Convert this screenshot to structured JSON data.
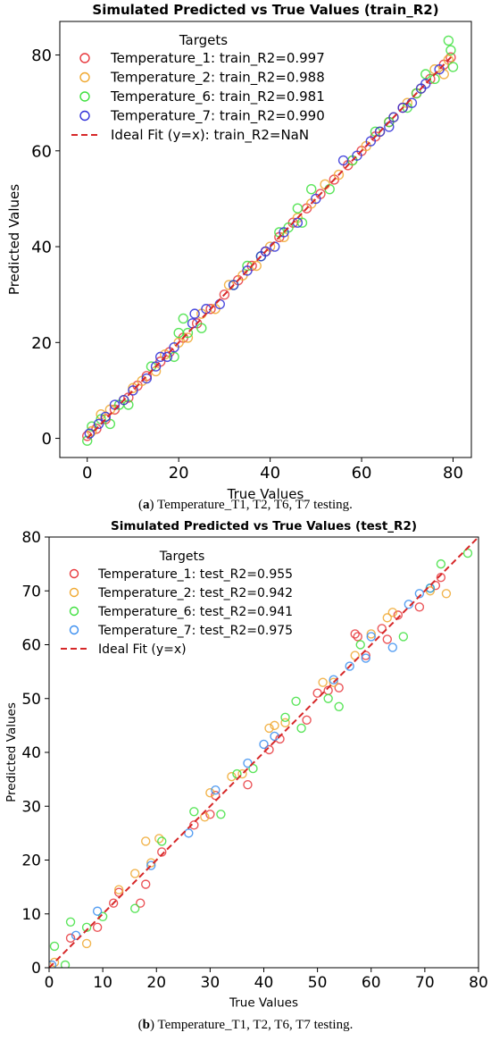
{
  "chart_data": [
    {
      "type": "scatter",
      "title": "Simulated Predicted vs True Values (train_R2)",
      "xlabel": "True Values",
      "ylabel": "Predicted Values",
      "xlim": [
        -6,
        84
      ],
      "ylim": [
        -4,
        87
      ],
      "xticks": [
        0,
        20,
        40,
        60,
        80
      ],
      "yticks": [
        0,
        20,
        40,
        60,
        80
      ],
      "legend_title": "Targets",
      "legend_position": "upper-left",
      "grid": false,
      "series": [
        {
          "name": "Temperature_1: train_R2=0.997",
          "color": "#e8383d",
          "points": [
            [
              0,
              0.5
            ],
            [
              2,
              2
            ],
            [
              4,
              4
            ],
            [
              6,
              6
            ],
            [
              9,
              8.5
            ],
            [
              11,
              11
            ],
            [
              13,
              13
            ],
            [
              16,
              16
            ],
            [
              18,
              18
            ],
            [
              21,
              21
            ],
            [
              24,
              24
            ],
            [
              27,
              27
            ],
            [
              30,
              30
            ],
            [
              33,
              33
            ],
            [
              36,
              36
            ],
            [
              39,
              39
            ],
            [
              42,
              42
            ],
            [
              45,
              45
            ],
            [
              48,
              48
            ],
            [
              51,
              51
            ],
            [
              54,
              54
            ],
            [
              57,
              57
            ],
            [
              60,
              60
            ],
            [
              63,
              63
            ],
            [
              66,
              66
            ],
            [
              69,
              69
            ],
            [
              72,
              72
            ],
            [
              75,
              75
            ],
            [
              78,
              78
            ],
            [
              79.5,
              79.5
            ]
          ]
        },
        {
          "name": "Temperature_2: train_R2=0.988",
          "color": "#f0a830",
          "points": [
            [
              1,
              1.5
            ],
            [
              3,
              5
            ],
            [
              5,
              6
            ],
            [
              8,
              8
            ],
            [
              10,
              10.5
            ],
            [
              12,
              12
            ],
            [
              15,
              14
            ],
            [
              17,
              17.5
            ],
            [
              20,
              20
            ],
            [
              22,
              21
            ],
            [
              25,
              26
            ],
            [
              28,
              27
            ],
            [
              31,
              32
            ],
            [
              34,
              34
            ],
            [
              37,
              36
            ],
            [
              40,
              40
            ],
            [
              43,
              42
            ],
            [
              46,
              46
            ],
            [
              49,
              49
            ],
            [
              52,
              53
            ],
            [
              55,
              55
            ],
            [
              58,
              58
            ],
            [
              61,
              61
            ],
            [
              64,
              64
            ],
            [
              67,
              67
            ],
            [
              70,
              70
            ],
            [
              73,
              73
            ],
            [
              76,
              77
            ],
            [
              78,
              76
            ],
            [
              79,
              79
            ]
          ]
        },
        {
          "name": "Temperature_6: train_R2=0.981",
          "color": "#3ee03e",
          "points": [
            [
              0,
              -0.5
            ],
            [
              1,
              2.5
            ],
            [
              3,
              4
            ],
            [
              5,
              3
            ],
            [
              7,
              7
            ],
            [
              9,
              7
            ],
            [
              14,
              15
            ],
            [
              19,
              17
            ],
            [
              20,
              22
            ],
            [
              21,
              25
            ],
            [
              22,
              22
            ],
            [
              25,
              23
            ],
            [
              32,
              32
            ],
            [
              35,
              36
            ],
            [
              38,
              38
            ],
            [
              42,
              43
            ],
            [
              44,
              44
            ],
            [
              46,
              48
            ],
            [
              47,
              45
            ],
            [
              49,
              52
            ],
            [
              53,
              52
            ],
            [
              58,
              58
            ],
            [
              63,
              64
            ],
            [
              66,
              66
            ],
            [
              70,
              69
            ],
            [
              72,
              72
            ],
            [
              74,
              76
            ],
            [
              76,
              75
            ],
            [
              79,
              83
            ],
            [
              79.5,
              81
            ],
            [
              80,
              77.5
            ]
          ]
        },
        {
          "name": "Temperature_7: train_R2=0.990",
          "color": "#2f2fd8",
          "points": [
            [
              0.5,
              1
            ],
            [
              2.5,
              3
            ],
            [
              4,
              4.5
            ],
            [
              6,
              7
            ],
            [
              8,
              8
            ],
            [
              10,
              10
            ],
            [
              13,
              12.5
            ],
            [
              15,
              15
            ],
            [
              16,
              17
            ],
            [
              17.5,
              17
            ],
            [
              19,
              19
            ],
            [
              23,
              24
            ],
            [
              23.5,
              26
            ],
            [
              26,
              27
            ],
            [
              29,
              28
            ],
            [
              32,
              32
            ],
            [
              35,
              35
            ],
            [
              38,
              38
            ],
            [
              39,
              39
            ],
            [
              41,
              40
            ],
            [
              43,
              43
            ],
            [
              46,
              45
            ],
            [
              50,
              50
            ],
            [
              56,
              58
            ],
            [
              59,
              59
            ],
            [
              62,
              62
            ],
            [
              64,
              64
            ],
            [
              66,
              65
            ],
            [
              67,
              67
            ],
            [
              69,
              69
            ],
            [
              71,
              70
            ],
            [
              73,
              73
            ],
            [
              74,
              74
            ],
            [
              77,
              77
            ]
          ]
        }
      ],
      "reference_line": {
        "name": "Ideal Fit (y=x): train_R2=NaN",
        "color": "#d62728",
        "from": [
          0,
          0
        ],
        "to": [
          80,
          80
        ]
      }
    },
    {
      "type": "scatter",
      "title": "Simulated Predicted vs True Values (test_R2)",
      "xlabel": "True Values",
      "ylabel": "Predicted Values",
      "xlim": [
        0,
        80
      ],
      "ylim": [
        0,
        80
      ],
      "xticks": [
        0,
        10,
        20,
        30,
        40,
        50,
        60,
        70,
        80
      ],
      "yticks": [
        0,
        10,
        20,
        30,
        40,
        50,
        60,
        70,
        80
      ],
      "legend_title": "Targets",
      "legend_position": "upper-left",
      "grid": false,
      "series": [
        {
          "name": "Temperature_1: test_R2=0.955",
          "color": "#e8383d",
          "points": [
            [
              4,
              5.5
            ],
            [
              9,
              7.5
            ],
            [
              12,
              12
            ],
            [
              13,
              14
            ],
            [
              17,
              12
            ],
            [
              18,
              15.5
            ],
            [
              21,
              21.5
            ],
            [
              27,
              26.5
            ],
            [
              30,
              28.5
            ],
            [
              31,
              32
            ],
            [
              37,
              34
            ],
            [
              41,
              40.5
            ],
            [
              43,
              42.5
            ],
            [
              48,
              46
            ],
            [
              50,
              51
            ],
            [
              52,
              51.5
            ],
            [
              54,
              52
            ],
            [
              57,
              62
            ],
            [
              57.5,
              61.5
            ],
            [
              59,
              58
            ],
            [
              62,
              63
            ],
            [
              63,
              61
            ],
            [
              65,
              65.5
            ],
            [
              69,
              67
            ],
            [
              72,
              71
            ],
            [
              73,
              72.5
            ]
          ]
        },
        {
          "name": "Temperature_2: test_R2=0.942",
          "color": "#f0a830",
          "points": [
            [
              1,
              1
            ],
            [
              7,
              4.5
            ],
            [
              13,
              14.5
            ],
            [
              16,
              17.5
            ],
            [
              18,
              23.5
            ],
            [
              19,
              19.5
            ],
            [
              20.5,
              24
            ],
            [
              29,
              28
            ],
            [
              30,
              32.5
            ],
            [
              34,
              35.5
            ],
            [
              36,
              36
            ],
            [
              41,
              44.5
            ],
            [
              42,
              45
            ],
            [
              44,
              45.5
            ],
            [
              51,
              53
            ],
            [
              53,
              53
            ],
            [
              57,
              58
            ],
            [
              60,
              62
            ],
            [
              63,
              65
            ],
            [
              64,
              66
            ],
            [
              71,
              70
            ],
            [
              74,
              69.5
            ]
          ]
        },
        {
          "name": "Temperature_6: test_R2=0.941",
          "color": "#3ee03e",
          "points": [
            [
              1,
              4
            ],
            [
              3,
              0.5
            ],
            [
              4,
              8.5
            ],
            [
              7,
              7.5
            ],
            [
              10,
              9.5
            ],
            [
              16,
              11
            ],
            [
              21,
              23.5
            ],
            [
              27,
              29
            ],
            [
              32,
              28.5
            ],
            [
              35,
              36
            ],
            [
              38,
              37
            ],
            [
              44,
              46.5
            ],
            [
              46,
              49.5
            ],
            [
              47,
              44.5
            ],
            [
              52,
              50
            ],
            [
              54,
              48.5
            ],
            [
              58,
              60
            ],
            [
              66,
              61.5
            ],
            [
              71,
              70.5
            ],
            [
              73,
              75
            ],
            [
              78,
              77
            ]
          ]
        },
        {
          "name": "Temperature_7: test_R2=0.975",
          "color": "#3a8ef0",
          "points": [
            [
              0.5,
              0.5
            ],
            [
              5,
              6
            ],
            [
              9,
              10.5
            ],
            [
              19,
              19
            ],
            [
              26,
              25
            ],
            [
              31,
              33
            ],
            [
              37,
              38
            ],
            [
              40,
              41.5
            ],
            [
              42,
              43
            ],
            [
              53,
              53.5
            ],
            [
              56,
              56
            ],
            [
              59,
              57.5
            ],
            [
              60,
              61.5
            ],
            [
              64,
              59.5
            ],
            [
              67,
              67.5
            ],
            [
              69,
              69.5
            ],
            [
              71,
              70.5
            ]
          ]
        }
      ],
      "reference_line": {
        "name": "Ideal Fit (y=x)",
        "color": "#d62728",
        "from": [
          0,
          0
        ],
        "to": [
          80,
          80
        ]
      }
    }
  ],
  "captions": [
    {
      "letter": "a",
      "text": " Temperature_T1, T2, T6, T7 testing."
    },
    {
      "letter": "b",
      "text": " Temperature_T1, T2, T6, T7 testing."
    }
  ]
}
